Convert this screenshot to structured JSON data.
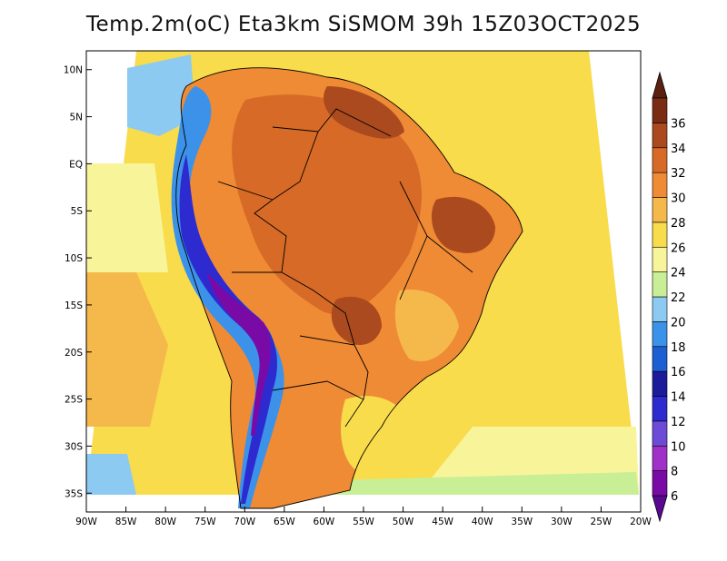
{
  "title": "Temp.2m(oC) Eta3km SiSMOM 39h 15Z03OCT2025",
  "map": {
    "variable": "Temp.2m",
    "units": "oC",
    "model": "Eta3km SiSMOM",
    "forecast_hour": "39h",
    "valid_time": "15Z03OCT2025",
    "lon_range": [
      -90,
      -20
    ],
    "lat_range": [
      -37,
      12
    ],
    "lat_tick_labels": [
      "10N",
      "5N",
      "EQ",
      "5S",
      "10S",
      "15S",
      "20S",
      "25S",
      "30S",
      "35S"
    ],
    "lat_tick_values": [
      10,
      5,
      0,
      -5,
      -10,
      -15,
      -20,
      -25,
      -30,
      -35
    ],
    "lon_tick_labels": [
      "90W",
      "85W",
      "80W",
      "75W",
      "70W",
      "65W",
      "60W",
      "55W",
      "50W",
      "45W",
      "40W",
      "35W",
      "30W",
      "25W",
      "20W"
    ],
    "lon_tick_values": [
      -90,
      -85,
      -80,
      -75,
      -70,
      -65,
      -60,
      -55,
      -50,
      -45,
      -40,
      -35,
      -30,
      -25,
      -20
    ]
  },
  "colorbar": {
    "labels": [
      "6",
      "8",
      "10",
      "12",
      "14",
      "16",
      "18",
      "20",
      "22",
      "24",
      "26",
      "28",
      "30",
      "32",
      "34",
      "36"
    ],
    "colors": [
      "#7a0aa6",
      "#a030c8",
      "#6c4cd6",
      "#2d2bd0",
      "#1c1c9a",
      "#1c5fd2",
      "#3c92e8",
      "#8ccaf2",
      "#c8ee96",
      "#f8f49a",
      "#f8dc4c",
      "#f5b84a",
      "#ef8a35",
      "#d66a26",
      "#aa4a1e",
      "#7a2c12"
    ],
    "over_color": "#5a2010",
    "under_color": "#5a0a90"
  }
}
